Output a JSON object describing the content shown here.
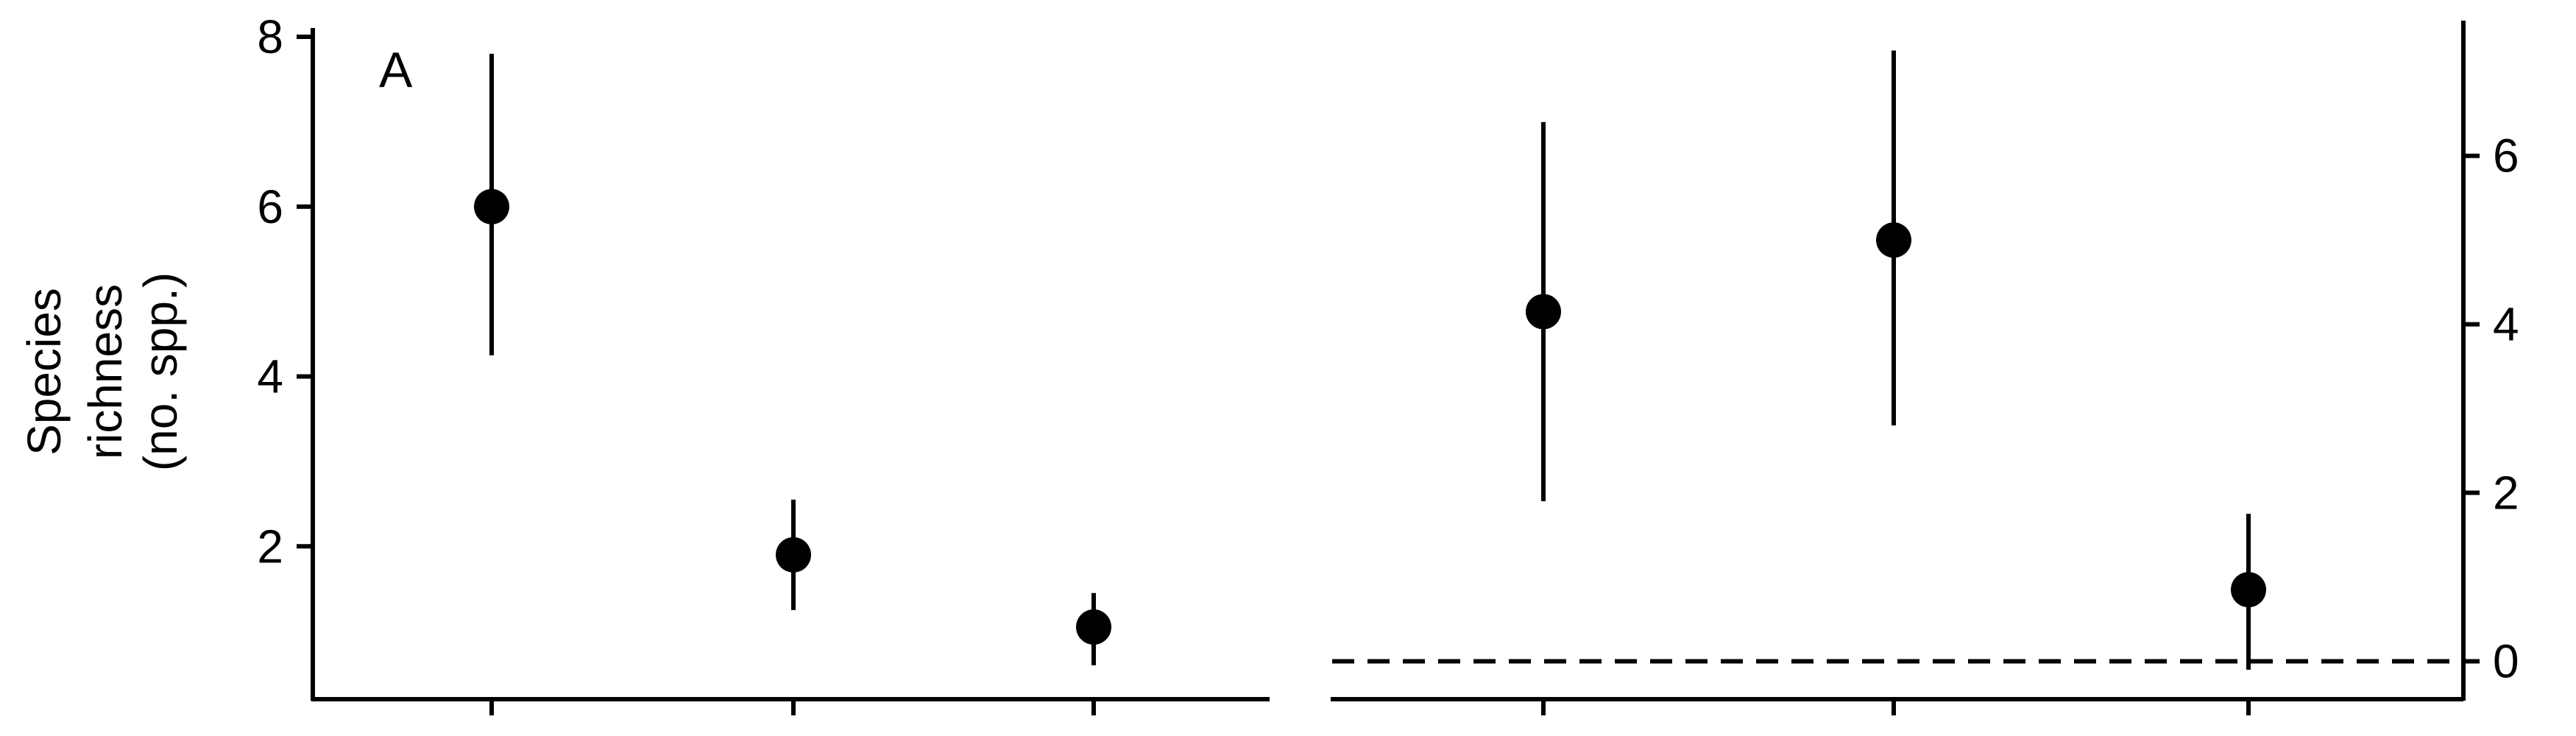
{
  "chart_data": [
    {
      "type": "scatter",
      "panel_label": "A",
      "ylabel_lines": [
        "Species",
        "richness",
        "(no. spp.)"
      ],
      "y_axis_side": "left",
      "ylim": [
        0.2,
        8.0
      ],
      "yticks": [
        2,
        4,
        6,
        8
      ],
      "x_positions": [
        1,
        2,
        3
      ],
      "series": [
        {
          "points": [
            {
              "x": 1,
              "y": 6.0,
              "lower": 4.25,
              "upper": 7.8
            },
            {
              "x": 2,
              "y": 1.9,
              "lower": 1.25,
              "upper": 2.55
            },
            {
              "x": 3,
              "y": 1.05,
              "lower": 0.6,
              "upper": 1.45
            }
          ]
        }
      ]
    },
    {
      "type": "scatter",
      "panel_label": "",
      "y_axis_side": "right",
      "ylim": [
        -0.45,
        7.5
      ],
      "yticks": [
        0,
        2,
        4,
        6
      ],
      "reference_line": {
        "y": 0,
        "style": "dashed"
      },
      "x_positions": [
        1,
        2,
        3
      ],
      "series": [
        {
          "points": [
            {
              "x": 1,
              "y": 4.15,
              "lower": 1.9,
              "upper": 6.4
            },
            {
              "x": 2,
              "y": 5.0,
              "lower": 2.8,
              "upper": 7.25
            },
            {
              "x": 3,
              "y": 0.85,
              "lower": -0.1,
              "upper": 1.75
            }
          ]
        }
      ]
    }
  ]
}
